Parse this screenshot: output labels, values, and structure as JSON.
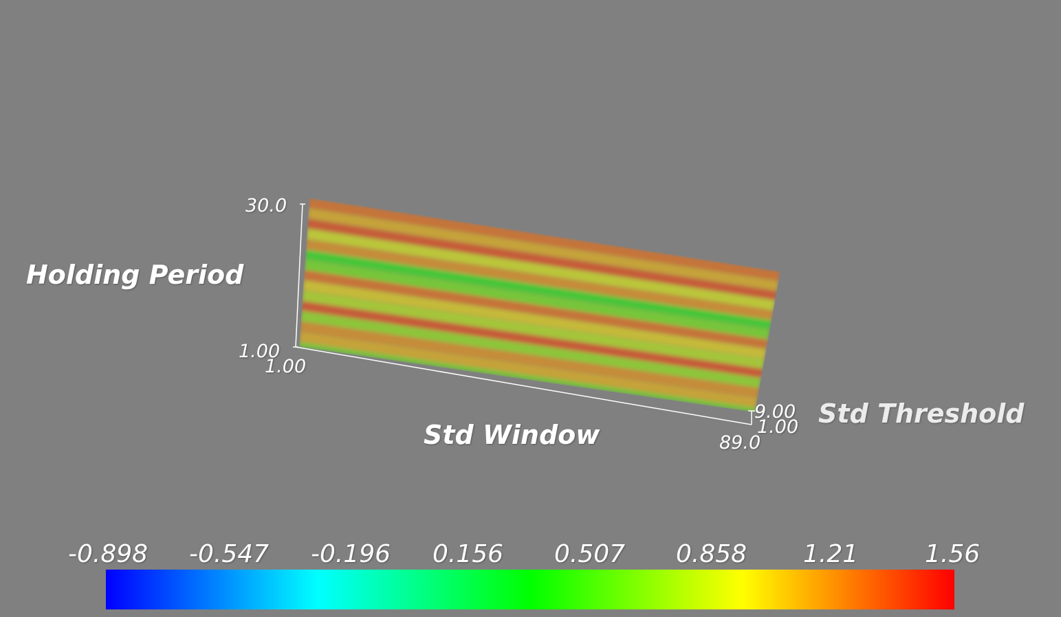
{
  "chart_data": {
    "type": "heatmap",
    "title": "",
    "render": "3d-volume",
    "axes": {
      "x": {
        "label": "Std Window",
        "range": [
          1.0,
          89.0
        ],
        "tick_labels": [
          "1.00",
          "89.0"
        ]
      },
      "y": {
        "label": "Holding Period",
        "range": [
          1.0,
          30.0
        ],
        "tick_labels": [
          "1.00",
          "30.0"
        ]
      },
      "z": {
        "label": "Std Threshold",
        "range": [
          1.0,
          9.0
        ],
        "tick_labels": [
          "1.00",
          "9.00"
        ]
      }
    },
    "colorbar": {
      "range": [
        -0.898,
        1.56
      ],
      "colormap": "rainbow",
      "stops": [
        "#0000ff",
        "#00ffff",
        "#00ff00",
        "#ffff00",
        "#ff0000"
      ],
      "tick_labels": [
        "-0.898",
        "-0.547",
        "-0.196",
        "0.156",
        "0.507",
        "0.858",
        "1.21",
        "1.56"
      ]
    },
    "bands": {
      "description_free": true,
      "y": [
        29,
        27,
        25,
        23,
        21,
        19,
        17,
        15,
        13,
        11,
        9,
        7,
        5,
        3,
        1
      ],
      "values": [
        1.3,
        1.1,
        1.4,
        0.9,
        1.2,
        0.4,
        0.6,
        1.3,
        1.0,
        0.8,
        1.4,
        0.7,
        1.2,
        1.1,
        0.6
      ]
    }
  },
  "background_color": "#808080"
}
